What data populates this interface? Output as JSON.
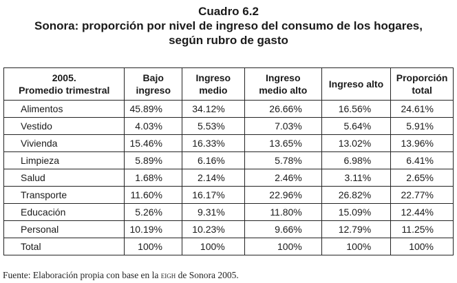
{
  "title": {
    "number": "Cuadro 6.2",
    "line1": "Sonora: proporción por nivel de ingreso del consumo de los hogares,",
    "line2": "según rubro de gasto"
  },
  "table": {
    "headers": [
      {
        "line1": "2005.",
        "line2": "Promedio trimestral"
      },
      {
        "line1": "Bajo",
        "line2": "ingreso"
      },
      {
        "line1": "Ingreso",
        "line2": "medio"
      },
      {
        "line1": "Ingreso",
        "line2": "medio alto"
      },
      {
        "line1": "Ingreso alto",
        "line2": ""
      },
      {
        "line1": "Proporción",
        "line2": "total"
      }
    ],
    "rows": [
      {
        "label": "Alimentos",
        "values": [
          "45.89%",
          "34.12%",
          "26.66%",
          "16.56%",
          "24.61%"
        ]
      },
      {
        "label": "Vestido",
        "values": [
          "4.03%",
          "5.53%",
          "7.03%",
          "5.64%",
          "5.91%"
        ]
      },
      {
        "label": "Vivienda",
        "values": [
          "15.46%",
          "16.33%",
          "13.65%",
          "13.02%",
          "13.96%"
        ]
      },
      {
        "label": "Limpieza",
        "values": [
          "5.89%",
          "6.16%",
          "5.78%",
          "6.98%",
          "6.41%"
        ]
      },
      {
        "label": "Salud",
        "values": [
          "1.68%",
          "2.14%",
          "2.46%",
          "3.11%",
          "2.65%"
        ]
      },
      {
        "label": "Transporte",
        "values": [
          "11.60%",
          "16.17%",
          "22.96%",
          "26.82%",
          "22.77%"
        ]
      },
      {
        "label": "Educación",
        "values": [
          "5.26%",
          "9.31%",
          "11.80%",
          "15.09%",
          "12.44%"
        ]
      },
      {
        "label": "Personal",
        "values": [
          "10.19%",
          "10.23%",
          "9.66%",
          "12.79%",
          "11.25%"
        ]
      },
      {
        "label": "Total",
        "values": [
          "100%",
          "100%",
          "100%",
          "100%",
          "100%"
        ]
      }
    ]
  },
  "source": {
    "prefix": "Fuente: Elaboración propia con base en la ",
    "acronym": "EIGH",
    "suffix": " de Sonora 2005."
  }
}
